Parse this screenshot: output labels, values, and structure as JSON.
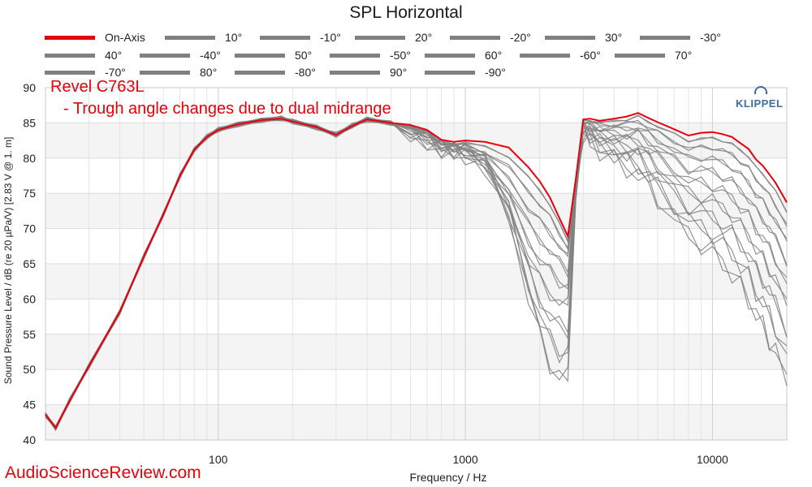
{
  "chart_data": {
    "type": "line",
    "title": "SPL Horizontal",
    "xlabel": "Frequency / Hz",
    "ylabel": "Sound Pressure Level / dB (re 20 µPa/V)  [2.83  V @ 1. m]",
    "x_scale": "log",
    "xlim": [
      20,
      20000
    ],
    "ylim": [
      40,
      90
    ],
    "x_ticks": [
      "100",
      "1000",
      "10000"
    ],
    "x_tick_values": [
      100,
      1000,
      10000
    ],
    "y_ticks": [
      "40",
      "45",
      "50",
      "55",
      "60",
      "65",
      "70",
      "75",
      "80",
      "85",
      "90"
    ],
    "grid": true,
    "legend_position": "top",
    "annotations": [
      "Revel C763L",
      "- Trough angle changes due to dual midrange"
    ],
    "colors": {
      "on_axis": "#e8000b",
      "off_axis": "#808080"
    },
    "series": [
      {
        "name": "On-Axis",
        "color": "#e8000b",
        "x": [
          20,
          22,
          25,
          30,
          40,
          50,
          60,
          70,
          80,
          90,
          100,
          120,
          150,
          180,
          200,
          250,
          300,
          350,
          400,
          500,
          600,
          700,
          800,
          900,
          1000,
          1200,
          1500,
          1800,
          2000,
          2200,
          2400,
          2600,
          2800,
          3000,
          3200,
          3500,
          4000,
          4500,
          5000,
          5500,
          6000,
          7000,
          8000,
          9000,
          10000,
          11000,
          12000,
          13000,
          14000,
          15000,
          16000,
          17000,
          18000,
          20000
        ],
        "values": [
          43.6,
          41.7,
          45.5,
          50.5,
          58.2,
          66.0,
          72.0,
          77.5,
          81.2,
          83.0,
          84.0,
          84.8,
          85.4,
          85.6,
          85.2,
          84.4,
          83.3,
          84.6,
          85.5,
          85.0,
          84.7,
          84.0,
          82.6,
          82.3,
          82.5,
          82.3,
          81.5,
          78.7,
          76.7,
          74.4,
          71.5,
          68.9,
          77.0,
          85.5,
          85.6,
          85.3,
          85.6,
          85.9,
          86.4,
          85.7,
          85.1,
          84.1,
          83.2,
          83.6,
          83.7,
          83.4,
          83.0,
          82.1,
          81.3,
          79.8,
          78.9,
          77.7,
          76.5,
          73.7
        ]
      },
      {
        "name": "10°",
        "color": "#808080"
      },
      {
        "name": "-10°",
        "color": "#808080"
      },
      {
        "name": "20°",
        "color": "#808080"
      },
      {
        "name": "-20°",
        "color": "#808080"
      },
      {
        "name": "30°",
        "color": "#808080"
      },
      {
        "name": "-30°",
        "color": "#808080"
      },
      {
        "name": "40°",
        "color": "#808080"
      },
      {
        "name": "-40°",
        "color": "#808080"
      },
      {
        "name": "50°",
        "color": "#808080"
      },
      {
        "name": "-50°",
        "color": "#808080"
      },
      {
        "name": "60°",
        "color": "#808080"
      },
      {
        "name": "-60°",
        "color": "#808080"
      },
      {
        "name": "70°",
        "color": "#808080"
      },
      {
        "name": "-70°",
        "color": "#808080"
      },
      {
        "name": "80°",
        "color": "#808080"
      },
      {
        "name": "-80°",
        "color": "#808080"
      },
      {
        "name": "90°",
        "color": "#808080"
      },
      {
        "name": "-90°",
        "color": "#808080"
      }
    ]
  },
  "logo": "KLIPPEL",
  "watermark": "AudioScienceReview.com"
}
